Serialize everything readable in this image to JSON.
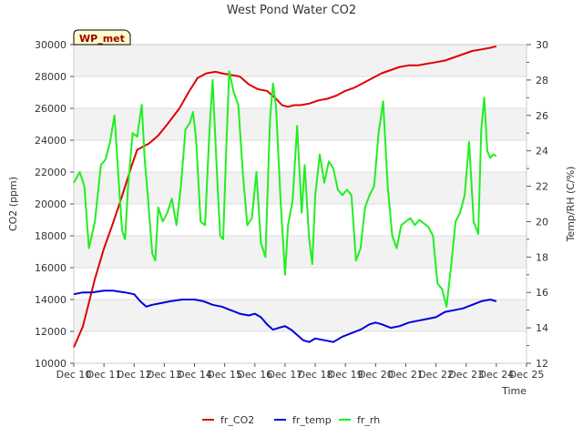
{
  "chart_data": {
    "type": "line",
    "title": "West Pond Water CO2",
    "site_label": "WP_met",
    "xlabel": "Time",
    "ylabel": "CO2 (ppm)",
    "y2label": "Temp/RH (C/%)",
    "grid": true,
    "legend_placement": "bottom-center",
    "xlim": [
      0,
      15
    ],
    "ylim": [
      10000,
      30000
    ],
    "y2lim": [
      12,
      30
    ],
    "x_tick_labels": [
      "Dec 10",
      "Dec 11",
      "Dec 12",
      "Dec 13",
      "Dec 14",
      "Dec 15",
      "Dec 16",
      "Dec 17",
      "Dec 18",
      "Dec 19",
      "Dec 20",
      "Dec 21",
      "Dec 22",
      "Dec 23",
      "Dec 24",
      "Dec 25"
    ],
    "y_ticks": [
      10000,
      12000,
      14000,
      16000,
      18000,
      20000,
      22000,
      24000,
      26000,
      28000,
      30000
    ],
    "y2_ticks": [
      12,
      14,
      16,
      18,
      20,
      22,
      24,
      26,
      28,
      30
    ],
    "series": [
      {
        "name": "fr_CO2",
        "axis": "left",
        "color": "#e00000",
        "x": [
          0.0,
          0.3,
          0.5,
          0.7,
          1.0,
          1.3,
          1.6,
          1.9,
          2.1,
          2.3,
          2.5,
          2.8,
          3.1,
          3.5,
          3.8,
          4.1,
          4.4,
          4.7,
          4.9,
          5.2,
          5.5,
          5.8,
          6.1,
          6.4,
          6.7,
          6.9,
          7.1,
          7.3,
          7.5,
          7.8,
          8.1,
          8.4,
          8.7,
          9.0,
          9.3,
          9.6,
          9.9,
          10.2,
          10.5,
          10.8,
          11.1,
          11.4,
          11.7,
          12.0,
          12.3,
          12.6,
          12.9,
          13.2,
          13.5,
          13.8,
          14.0
        ],
        "values": [
          11000,
          12300,
          13800,
          15300,
          17200,
          18800,
          20500,
          22300,
          23400,
          23600,
          23800,
          24300,
          25000,
          26000,
          27000,
          27900,
          28200,
          28300,
          28200,
          28100,
          28000,
          27500,
          27200,
          27100,
          26600,
          26200,
          26100,
          26200,
          26200,
          26300,
          26500,
          26600,
          26800,
          27100,
          27300,
          27600,
          27900,
          28200,
          28400,
          28600,
          28700,
          28700,
          28800,
          28900,
          29000,
          29200,
          29400,
          29600,
          29700,
          29800,
          29900
        ]
      },
      {
        "name": "fr_temp",
        "axis": "right",
        "color": "#0000dd",
        "x": [
          0.0,
          0.3,
          0.6,
          1.0,
          1.3,
          1.7,
          2.0,
          2.2,
          2.4,
          2.6,
          2.9,
          3.2,
          3.6,
          4.0,
          4.3,
          4.6,
          4.9,
          5.2,
          5.5,
          5.8,
          6.0,
          6.2,
          6.4,
          6.6,
          6.8,
          7.0,
          7.2,
          7.4,
          7.6,
          7.8,
          8.0,
          8.3,
          8.6,
          8.9,
          9.2,
          9.5,
          9.8,
          10.0,
          10.2,
          10.5,
          10.8,
          11.1,
          11.4,
          11.7,
          12.0,
          12.3,
          12.6,
          12.9,
          13.2,
          13.5,
          13.8,
          14.0
        ],
        "values": [
          15.9,
          16.0,
          16.0,
          16.1,
          16.1,
          16.0,
          15.9,
          15.5,
          15.2,
          15.3,
          15.4,
          15.5,
          15.6,
          15.6,
          15.5,
          15.3,
          15.2,
          15.0,
          14.8,
          14.7,
          14.8,
          14.6,
          14.2,
          13.9,
          14.0,
          14.1,
          13.9,
          13.6,
          13.3,
          13.2,
          13.4,
          13.3,
          13.2,
          13.5,
          13.7,
          13.9,
          14.2,
          14.3,
          14.2,
          14.0,
          14.1,
          14.3,
          14.4,
          14.5,
          14.6,
          14.9,
          15.0,
          15.1,
          15.3,
          15.5,
          15.6,
          15.5
        ]
      },
      {
        "name": "fr_rh",
        "axis": "right",
        "color": "#22ee22",
        "x": [
          0.0,
          0.2,
          0.35,
          0.5,
          0.7,
          0.9,
          1.05,
          1.2,
          1.35,
          1.5,
          1.6,
          1.7,
          1.8,
          1.95,
          2.1,
          2.25,
          2.35,
          2.45,
          2.6,
          2.7,
          2.8,
          2.95,
          3.1,
          3.25,
          3.4,
          3.55,
          3.7,
          3.85,
          3.95,
          4.05,
          4.2,
          4.35,
          4.5,
          4.6,
          4.75,
          4.85,
          4.95,
          5.05,
          5.15,
          5.3,
          5.45,
          5.6,
          5.75,
          5.9,
          6.05,
          6.2,
          6.35,
          6.5,
          6.6,
          6.7,
          6.85,
          7.0,
          7.1,
          7.25,
          7.4,
          7.55,
          7.65,
          7.8,
          7.9,
          8.0,
          8.15,
          8.3,
          8.45,
          8.6,
          8.75,
          8.9,
          9.05,
          9.2,
          9.35,
          9.5,
          9.65,
          9.8,
          9.95,
          10.1,
          10.25,
          10.4,
          10.55,
          10.7,
          10.85,
          11.0,
          11.15,
          11.3,
          11.45,
          11.6,
          11.75,
          11.9,
          12.05,
          12.2,
          12.35,
          12.5,
          12.65,
          12.8,
          12.95,
          13.1,
          13.25,
          13.4,
          13.5,
          13.6,
          13.7,
          13.8,
          13.9,
          14.0
        ],
        "values": [
          22.2,
          22.8,
          22.0,
          18.5,
          20.0,
          23.2,
          23.5,
          24.5,
          26.0,
          22.0,
          19.5,
          19.0,
          22.0,
          25.0,
          24.8,
          26.6,
          23.5,
          21.5,
          18.2,
          17.8,
          20.8,
          20.0,
          20.5,
          21.3,
          19.8,
          22.0,
          25.2,
          25.6,
          26.2,
          24.7,
          20.0,
          19.8,
          25.3,
          28.0,
          22.5,
          19.2,
          19.0,
          24.0,
          28.5,
          27.3,
          26.6,
          22.8,
          19.8,
          20.2,
          22.8,
          18.8,
          18.0,
          25.8,
          27.8,
          26.5,
          21.2,
          17.0,
          19.8,
          21.2,
          25.4,
          20.5,
          23.2,
          19.0,
          17.6,
          21.5,
          23.8,
          22.2,
          23.4,
          23.0,
          21.8,
          21.5,
          21.8,
          21.5,
          17.8,
          18.5,
          20.8,
          21.5,
          22.0,
          25.0,
          26.8,
          22.0,
          19.2,
          18.5,
          19.8,
          20.0,
          20.2,
          19.8,
          20.1,
          19.9,
          19.7,
          19.2,
          16.5,
          16.2,
          15.2,
          17.5,
          20.0,
          20.5,
          21.5,
          24.5,
          20.0,
          19.3,
          25.2,
          27.0,
          24.0,
          23.6,
          23.8,
          23.7
        ]
      }
    ]
  }
}
